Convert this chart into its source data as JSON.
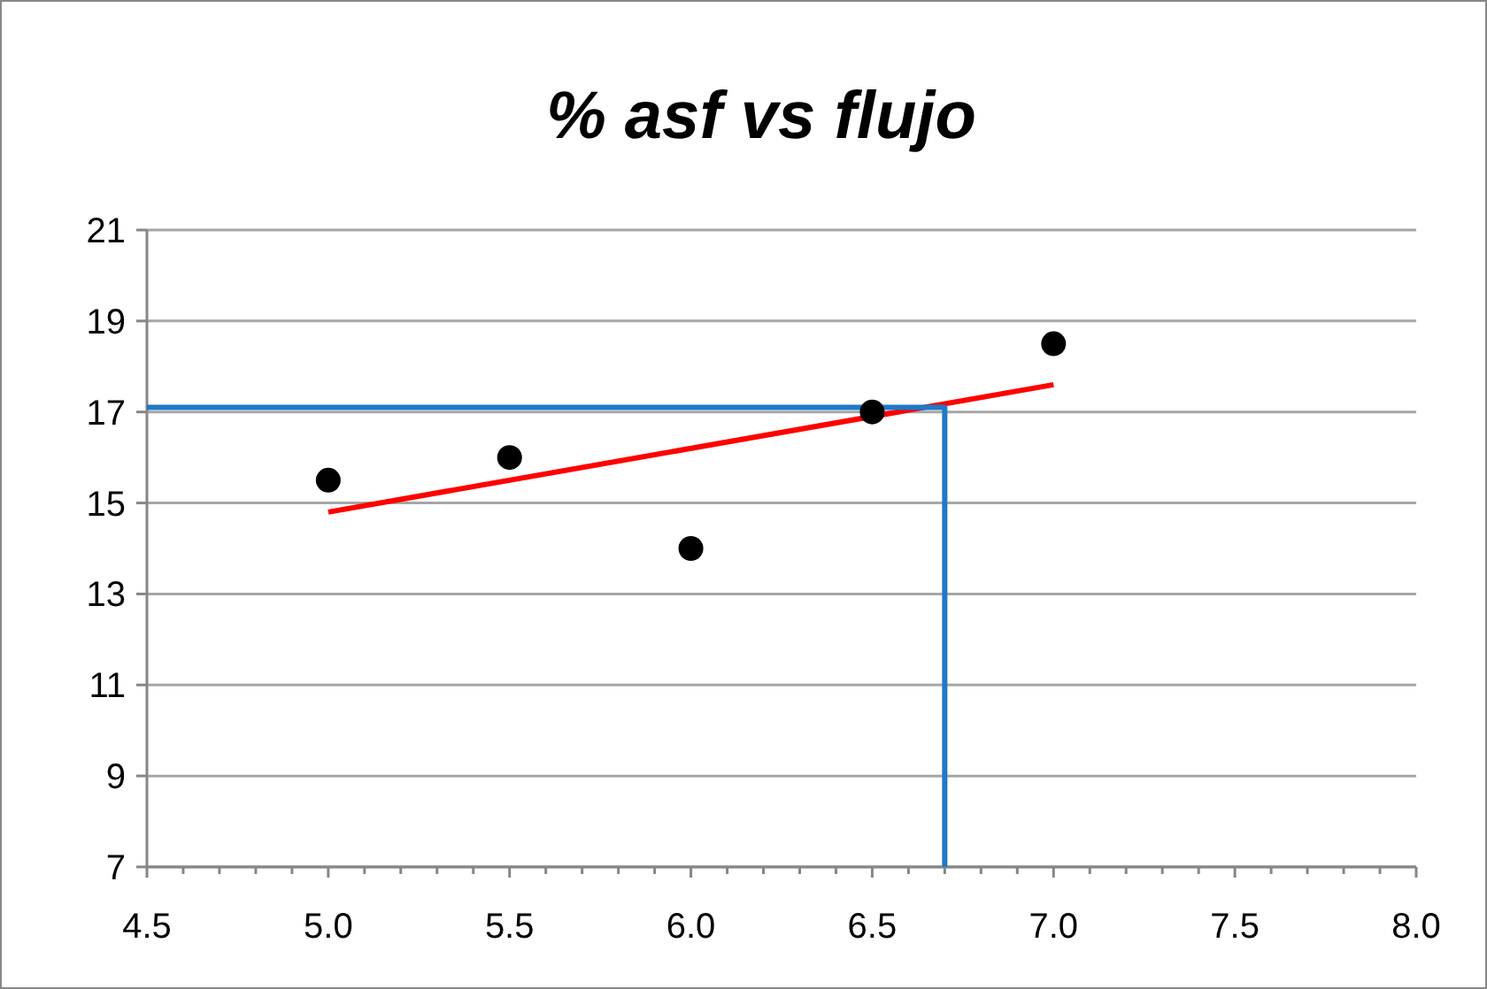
{
  "chart_data": {
    "type": "scatter",
    "title": "% asf vs flujo",
    "xlim": [
      4.5,
      8.0
    ],
    "xticks": [
      {
        "value": 4.5,
        "label": "4.5"
      },
      {
        "value": 4.6,
        "label": null
      },
      {
        "value": 4.7,
        "label": null
      },
      {
        "value": 4.8,
        "label": null
      },
      {
        "value": 4.9,
        "label": null
      },
      {
        "value": 5.0,
        "label": "5.0"
      },
      {
        "value": 5.1,
        "label": null
      },
      {
        "value": 5.2,
        "label": null
      },
      {
        "value": 5.3,
        "label": null
      },
      {
        "value": 5.4,
        "label": null
      },
      {
        "value": 5.5,
        "label": "5.5"
      },
      {
        "value": 5.6,
        "label": null
      },
      {
        "value": 5.7,
        "label": null
      },
      {
        "value": 5.8,
        "label": null
      },
      {
        "value": 5.9,
        "label": null
      },
      {
        "value": 6.0,
        "label": "6.0"
      },
      {
        "value": 6.1,
        "label": null
      },
      {
        "value": 6.2,
        "label": null
      },
      {
        "value": 6.3,
        "label": null
      },
      {
        "value": 6.4,
        "label": null
      },
      {
        "value": 6.5,
        "label": "6.5"
      },
      {
        "value": 6.6,
        "label": null
      },
      {
        "value": 6.7,
        "label": null
      },
      {
        "value": 6.8,
        "label": null
      },
      {
        "value": 6.9,
        "label": null
      },
      {
        "value": 7.0,
        "label": "7.0"
      },
      {
        "value": 7.1,
        "label": null
      },
      {
        "value": 7.2,
        "label": null
      },
      {
        "value": 7.3,
        "label": null
      },
      {
        "value": 7.4,
        "label": null
      },
      {
        "value": 7.5,
        "label": "7.5"
      },
      {
        "value": 7.6,
        "label": null
      },
      {
        "value": 7.7,
        "label": null
      },
      {
        "value": 7.8,
        "label": null
      },
      {
        "value": 7.9,
        "label": null
      },
      {
        "value": 8.0,
        "label": "8.0"
      }
    ],
    "ylim": [
      7,
      21
    ],
    "yticks": [
      7,
      9,
      11,
      13,
      15,
      17,
      19,
      21
    ],
    "grid": "y",
    "series": [
      {
        "color": "#000000",
        "marker": "circle",
        "x": [
          5.0,
          5.5,
          6.0,
          6.5,
          7.0
        ],
        "values": [
          15.5,
          16.0,
          14.0,
          17.0,
          18.5
        ]
      },
      {
        "type": "line",
        "color": "#ff0000",
        "marker": "none",
        "x": [
          5.0,
          7.0
        ],
        "values": [
          14.8,
          17.6
        ]
      },
      {
        "type": "line",
        "color": "#1f78c8",
        "marker": "none",
        "x": [
          4.5,
          6.7,
          6.7
        ],
        "values": [
          17.1,
          17.1,
          7
        ]
      }
    ]
  }
}
